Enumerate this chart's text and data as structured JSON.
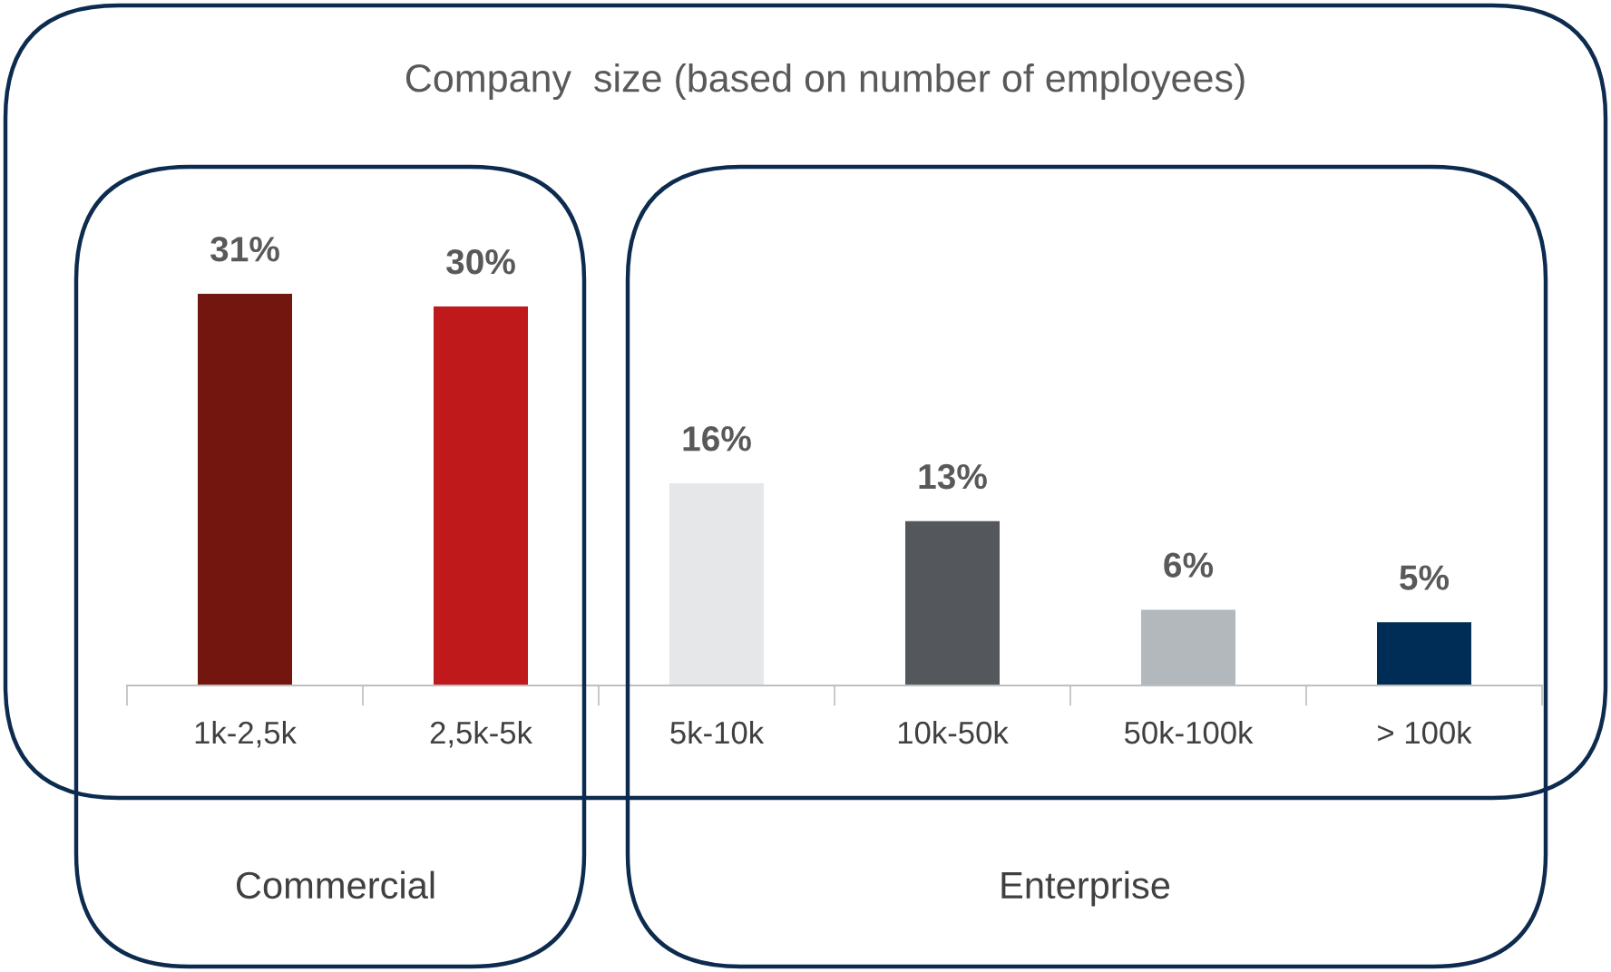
{
  "chart_data": {
    "type": "bar",
    "title": "Company  size (based on number of employees)",
    "categories": [
      "1k-2,5k",
      "2,5k-5k",
      "5k-10k",
      "10k-50k",
      "50k-100k",
      "> 100k"
    ],
    "values": [
      31,
      30,
      16,
      13,
      6,
      5
    ],
    "colors": [
      "#731610",
      "#c0191c",
      "#e6e7e8",
      "#54575b",
      "#b3b8bd",
      "#002d56"
    ],
    "value_labels": [
      "31%",
      "30%",
      "16%",
      "13%",
      "6%",
      "5%"
    ],
    "annotations": [
      "Commercial",
      "Enterprise"
    ],
    "grid": false,
    "legend": false
  }
}
